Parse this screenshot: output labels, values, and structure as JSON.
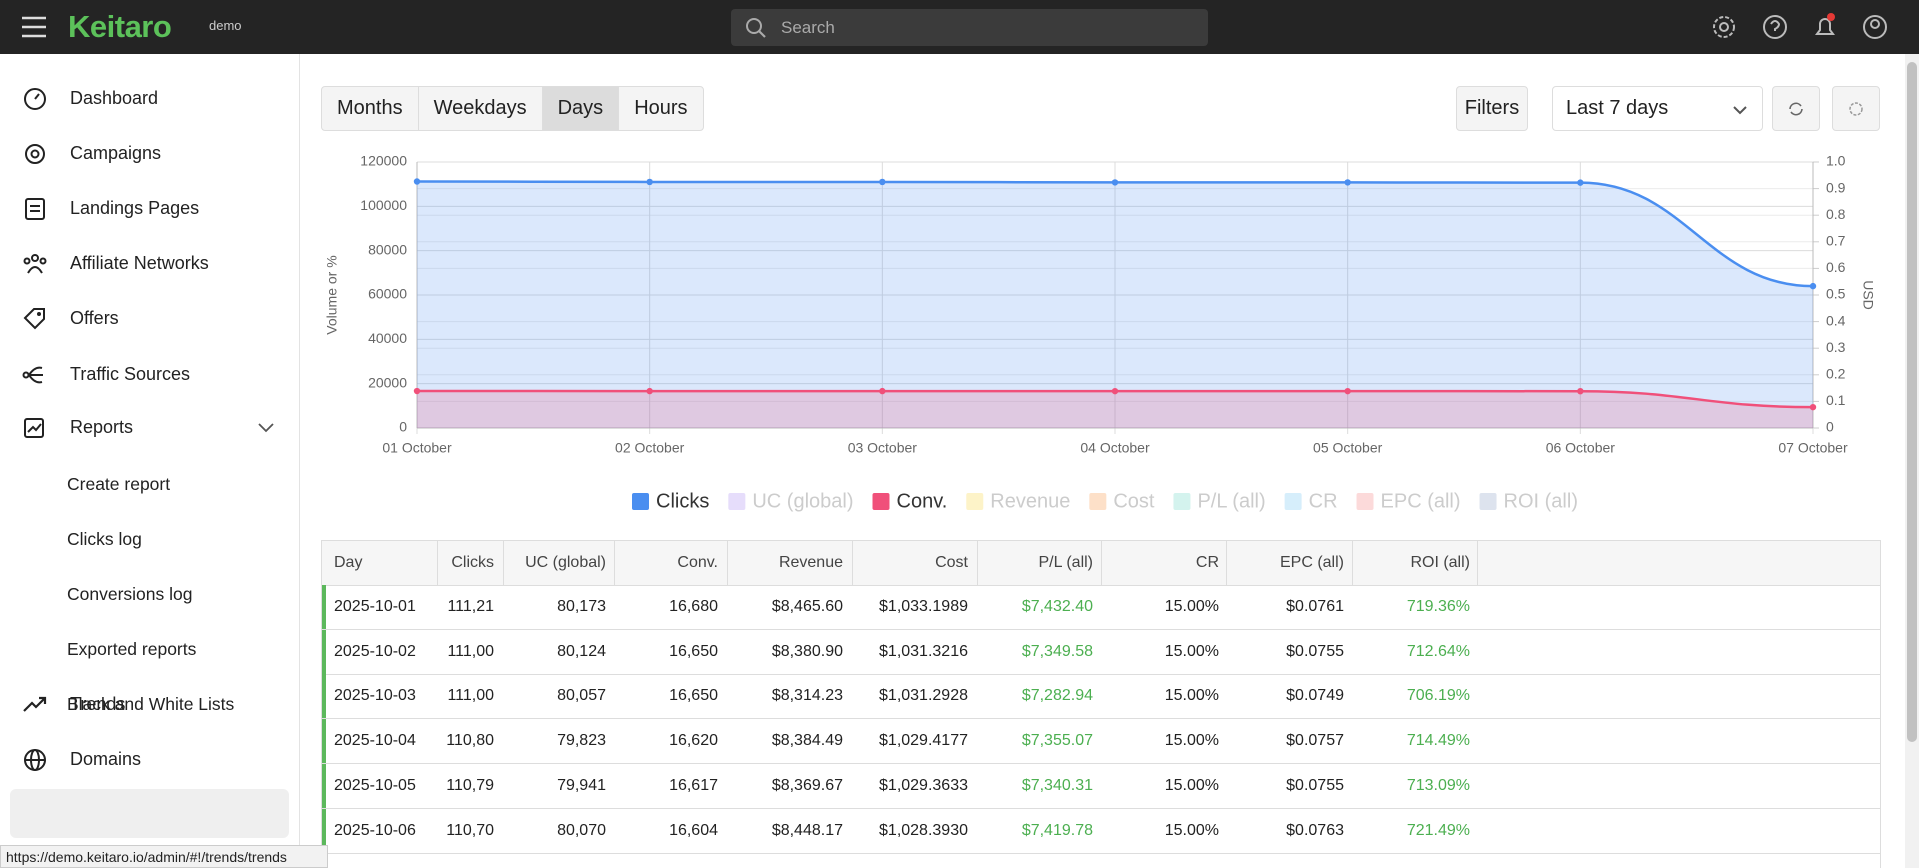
{
  "header": {
    "logo": "Keitaro",
    "badge": "demo",
    "search_placeholder": "Search"
  },
  "sidebar": {
    "items": [
      "Dashboard",
      "Campaigns",
      "Landings Pages",
      "Affiliate Networks",
      "Offers",
      "Traffic Sources",
      "Reports"
    ],
    "subitems": [
      "Create report",
      "Clicks log",
      "Conversions log",
      "Exported reports",
      "Black and White Lists"
    ],
    "more_items": [
      "Trends",
      "Domains"
    ]
  },
  "toolbar": {
    "periods": [
      "Months",
      "Weekdays",
      "Days",
      "Hours"
    ],
    "filters": "Filters",
    "range": "Last 7 days"
  },
  "chart_data": {
    "type": "line",
    "area": true,
    "y_label": "Volume or %",
    "y2_label": "USD",
    "categories": [
      "01 October",
      "02 October",
      "03 October",
      "04 October",
      "05 October",
      "06 October",
      "07 October"
    ],
    "series": [
      {
        "name": "Clicks",
        "color": "#4a8ef0",
        "values": [
          111200,
          111000,
          111000,
          110800,
          110790,
          110700,
          64000
        ]
      },
      {
        "name": "Conv.",
        "color": "#f0507a",
        "values": [
          16680,
          16650,
          16650,
          16620,
          16617,
          16604,
          9400
        ]
      }
    ],
    "legend_hidden": [
      {
        "name": "UC (global)",
        "color": "#e6ddfb"
      },
      {
        "name": "Revenue",
        "color": "#fdf3c8"
      },
      {
        "name": "Cost",
        "color": "#fde0c8"
      },
      {
        "name": "P/L (all)",
        "color": "#d4f3ee"
      },
      {
        "name": "CR",
        "color": "#d6eefb"
      },
      {
        "name": "EPC (all)",
        "color": "#fcdada"
      },
      {
        "name": "ROI (all)",
        "color": "#dde3ee"
      }
    ],
    "ylim": [
      0,
      120000
    ],
    "yticks": [
      0,
      20000,
      40000,
      60000,
      80000,
      100000,
      120000
    ],
    "y2lim": [
      0,
      1
    ],
    "y2ticks": [
      0,
      0.1,
      0.2,
      0.3,
      0.4,
      0.5,
      0.6,
      0.7,
      0.8,
      0.9,
      {
        "value": 1,
        "label": "1.0"
      }
    ],
    "grid": true
  },
  "table": {
    "columns": [
      "Day",
      "Clicks",
      "UC (global)",
      "Conv.",
      "Revenue",
      "Cost",
      "P/L (all)",
      "CR",
      "EPC (all)",
      "ROI (all)"
    ],
    "rows": [
      [
        "2025-10-01",
        "111,21",
        "80,173",
        "16,680",
        "$8,465.60",
        "$1,033.1989",
        "$7,432.40",
        "15.00%",
        "$0.0761",
        "719.36%"
      ],
      [
        "2025-10-02",
        "111,00",
        "80,124",
        "16,650",
        "$8,380.90",
        "$1,031.3216",
        "$7,349.58",
        "15.00%",
        "$0.0755",
        "712.64%"
      ],
      [
        "2025-10-03",
        "111,00",
        "80,057",
        "16,650",
        "$8,314.23",
        "$1,031.2928",
        "$7,282.94",
        "15.00%",
        "$0.0749",
        "706.19%"
      ],
      [
        "2025-10-04",
        "110,80",
        "79,823",
        "16,620",
        "$8,384.49",
        "$1,029.4177",
        "$7,355.07",
        "15.00%",
        "$0.0757",
        "714.49%"
      ],
      [
        "2025-10-05",
        "110,79",
        "79,941",
        "16,617",
        "$8,369.67",
        "$1,029.3633",
        "$7,340.31",
        "15.00%",
        "$0.0755",
        "713.09%"
      ],
      [
        "2025-10-06",
        "110,70",
        "80,070",
        "16,604",
        "$8,448.17",
        "$1,028.3930",
        "$7,419.78",
        "15.00%",
        "$0.0763",
        "721.49%"
      ]
    ]
  },
  "status_bar": {
    "url": "https://demo.keitaro.io/admin/#!/trends/trends"
  }
}
